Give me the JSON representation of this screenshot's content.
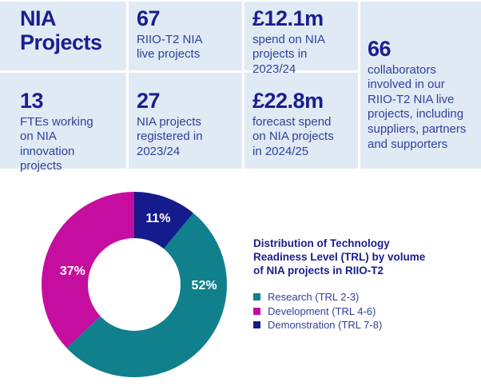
{
  "colors": {
    "panel_bg": "#dfeaf5",
    "navy_strong": "#1b1e8e",
    "navy_body": "#32409b",
    "teal": "#0f808c",
    "magenta": "#c50da0",
    "dark_blue": "#151a8d",
    "donut_label": "#ffffff"
  },
  "stats": {
    "title": "NIA\nProjects",
    "items": [
      {
        "value": "67",
        "label": "RIIO-T2 NIA\nlive projects"
      },
      {
        "value": "£12.1m",
        "label": "spend on NIA\nprojects in\n2023/24"
      },
      {
        "value": "66",
        "label": "collaborators\ninvolved in our\nRIIO-T2 NIA live\nprojects, including\nsuppliers, partners\nand supporters"
      },
      {
        "value": "13",
        "label": "FTEs working\non NIA innovation\nprojects"
      },
      {
        "value": "27",
        "label": "NIA projects\nregistered in\n2023/24"
      },
      {
        "value": "£22.8m",
        "label": "forecast spend\non NIA projects\nin 2024/25"
      }
    ]
  },
  "chart_data": {
    "type": "pie",
    "subtype": "donut",
    "title": "Distribution of Technology\nReadiness Level (TRL) by volume\nof NIA projects in RIIO-T2",
    "unit": "%",
    "start_angle_deg": 0,
    "inner_radius_frac": 0.5,
    "label_color": "#ffffff",
    "legend_position": "right",
    "slices": [
      {
        "name": "Demonstration (TRL 7-8)",
        "value": 11,
        "label": "11%",
        "color": "#151a8d",
        "label_angle_deg": 20,
        "label_r_frac": 0.755
      },
      {
        "name": "Research (TRL 2-3)",
        "value": 52,
        "label": "52%",
        "color": "#0f808c",
        "label_angle_deg": 91,
        "label_r_frac": 0.755
      },
      {
        "name": "Development (TRL 4-6)",
        "value": 37,
        "label": "37%",
        "color": "#c50da0",
        "label_angle_deg": 282,
        "label_r_frac": 0.68
      }
    ],
    "legend": [
      {
        "label": "Research (TRL 2-3)",
        "color": "#0f808c"
      },
      {
        "label": "Development (TRL 4-6)",
        "color": "#c50da0"
      },
      {
        "label": "Demonstration (TRL 7-8)",
        "color": "#151a8d"
      }
    ]
  }
}
